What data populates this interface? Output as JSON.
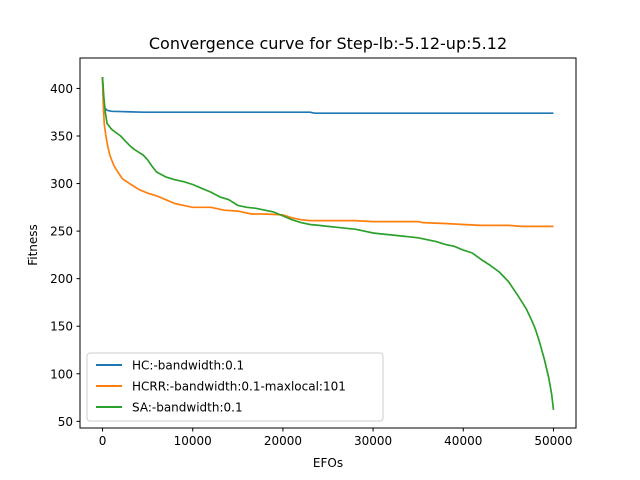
{
  "chart_data": {
    "type": "line",
    "title": "Convergence curve for Step-lb:-5.12-up:5.12",
    "xlabel": "EFOs",
    "ylabel": "Fitness",
    "xlim": [
      -2500,
      52500
    ],
    "ylim": [
      43,
      432
    ],
    "xticks": [
      0,
      10000,
      20000,
      30000,
      40000,
      50000
    ],
    "xtick_labels": [
      "0",
      "10000",
      "20000",
      "30000",
      "40000",
      "50000"
    ],
    "yticks": [
      50,
      100,
      150,
      200,
      250,
      300,
      350,
      400
    ],
    "ytick_labels": [
      "50",
      "100",
      "150",
      "200",
      "250",
      "300",
      "350",
      "400"
    ],
    "grid": false,
    "legend_position": "lower-left",
    "series": [
      {
        "name": "HC:-bandwidth:0.1",
        "color": "#1f77b4",
        "points": [
          [
            0,
            412
          ],
          [
            80,
            390
          ],
          [
            200,
            380
          ],
          [
            500,
            377
          ],
          [
            1000,
            376
          ],
          [
            2500,
            375.5
          ],
          [
            4500,
            375
          ],
          [
            10000,
            375
          ],
          [
            23000,
            375
          ],
          [
            23500,
            374
          ],
          [
            30000,
            374
          ],
          [
            40000,
            374
          ],
          [
            50000,
            374
          ]
        ]
      },
      {
        "name": "HCRR:-bandwidth:0.1-maxlocal:101",
        "color": "#ff7f0e",
        "points": [
          [
            0,
            412
          ],
          [
            100,
            380
          ],
          [
            200,
            362
          ],
          [
            400,
            348
          ],
          [
            600,
            338
          ],
          [
            800,
            330
          ],
          [
            1000,
            325
          ],
          [
            1300,
            318
          ],
          [
            1700,
            312
          ],
          [
            2200,
            305
          ],
          [
            3000,
            300
          ],
          [
            4000,
            294
          ],
          [
            5000,
            290
          ],
          [
            6000,
            287
          ],
          [
            7000,
            283
          ],
          [
            8000,
            279
          ],
          [
            9000,
            277
          ],
          [
            10000,
            275
          ],
          [
            12000,
            275
          ],
          [
            13500,
            272
          ],
          [
            15000,
            271
          ],
          [
            16500,
            268
          ],
          [
            18000,
            268
          ],
          [
            20000,
            267
          ],
          [
            21000,
            264
          ],
          [
            22000,
            262
          ],
          [
            23000,
            261
          ],
          [
            25000,
            261
          ],
          [
            28000,
            261
          ],
          [
            30000,
            260
          ],
          [
            35000,
            260
          ],
          [
            35500,
            259
          ],
          [
            38000,
            258
          ],
          [
            40000,
            257
          ],
          [
            42000,
            256
          ],
          [
            45000,
            256
          ],
          [
            46500,
            255
          ],
          [
            50000,
            255
          ]
        ]
      },
      {
        "name": "SA:-bandwidth:0.1",
        "color": "#2ca02c",
        "points": [
          [
            0,
            412
          ],
          [
            150,
            390
          ],
          [
            300,
            375
          ],
          [
            500,
            363
          ],
          [
            1000,
            357
          ],
          [
            2000,
            350
          ],
          [
            2500,
            345
          ],
          [
            3000,
            340
          ],
          [
            3500,
            336
          ],
          [
            4000,
            333
          ],
          [
            4500,
            330
          ],
          [
            5000,
            325
          ],
          [
            5500,
            318
          ],
          [
            6000,
            312
          ],
          [
            7000,
            307
          ],
          [
            8000,
            304
          ],
          [
            9000,
            302
          ],
          [
            10000,
            299
          ],
          [
            11000,
            295
          ],
          [
            12000,
            291
          ],
          [
            13000,
            286
          ],
          [
            14000,
            283
          ],
          [
            15000,
            277
          ],
          [
            16000,
            275
          ],
          [
            17000,
            274
          ],
          [
            18000,
            272
          ],
          [
            19000,
            270
          ],
          [
            20000,
            266
          ],
          [
            21000,
            262
          ],
          [
            22000,
            259
          ],
          [
            23000,
            257
          ],
          [
            24000,
            256
          ],
          [
            25000,
            255
          ],
          [
            26000,
            254
          ],
          [
            27000,
            253
          ],
          [
            28000,
            252
          ],
          [
            29000,
            250
          ],
          [
            30000,
            248
          ],
          [
            31000,
            247
          ],
          [
            32000,
            246
          ],
          [
            33000,
            245
          ],
          [
            34000,
            244
          ],
          [
            35000,
            243
          ],
          [
            36000,
            241
          ],
          [
            37000,
            239
          ],
          [
            38000,
            236
          ],
          [
            39000,
            234
          ],
          [
            40000,
            230
          ],
          [
            41000,
            227
          ],
          [
            42000,
            220
          ],
          [
            43000,
            214
          ],
          [
            44000,
            207
          ],
          [
            45000,
            197
          ],
          [
            46000,
            183
          ],
          [
            47000,
            168
          ],
          [
            47500,
            158
          ],
          [
            48000,
            147
          ],
          [
            48500,
            132
          ],
          [
            49000,
            115
          ],
          [
            49500,
            95
          ],
          [
            49800,
            78
          ],
          [
            50000,
            62
          ]
        ]
      }
    ]
  }
}
